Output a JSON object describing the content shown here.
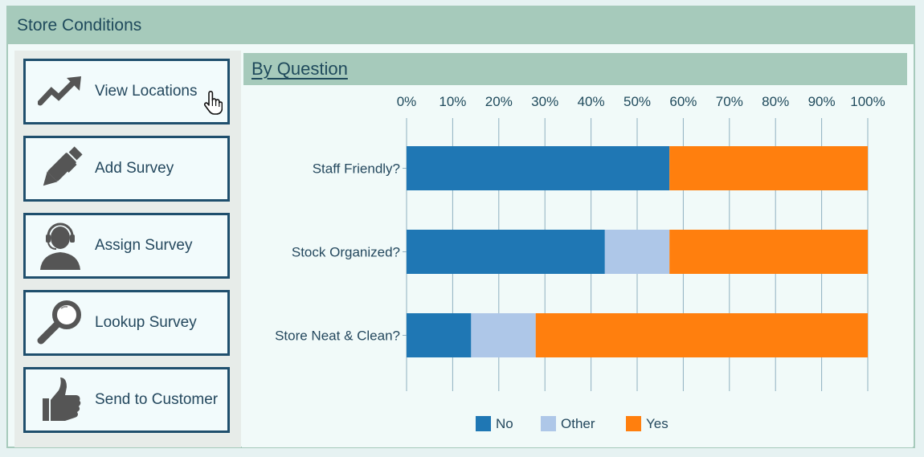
{
  "window": {
    "title": "Store Conditions"
  },
  "sidebar": {
    "items": [
      {
        "label": "View Locations",
        "icon": "trend-up-icon"
      },
      {
        "label": "Add Survey",
        "icon": "pen-icon"
      },
      {
        "label": "Assign Survey",
        "icon": "headset-user-icon"
      },
      {
        "label": "Lookup Survey",
        "icon": "magnifier-icon"
      },
      {
        "label": "Send to Customer",
        "icon": "thumbs-up-icon"
      }
    ]
  },
  "main": {
    "section_title": "By Question"
  },
  "chart_data": {
    "type": "bar",
    "orientation": "horizontal",
    "stacked": true,
    "xlim": [
      0,
      100
    ],
    "ticks": [
      "0%",
      "10%",
      "20%",
      "30%",
      "40%",
      "50%",
      "60%",
      "70%",
      "80%",
      "90%",
      "100%"
    ],
    "categories": [
      "Staff Friendly?",
      "Stock Organized?",
      "Store Neat & Clean?"
    ],
    "series": [
      {
        "name": "No",
        "color": "#1f77b4",
        "values": [
          57,
          43,
          14
        ]
      },
      {
        "name": "Other",
        "color": "#aec7e8",
        "values": [
          0,
          14,
          14
        ]
      },
      {
        "name": "Yes",
        "color": "#ff7f0e",
        "values": [
          43,
          43,
          72
        ]
      }
    ],
    "legend_position": "bottom-center",
    "grid": true
  }
}
